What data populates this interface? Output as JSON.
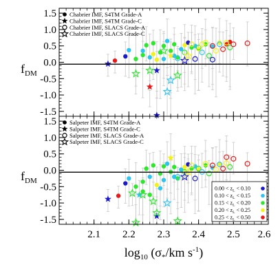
{
  "chart_data": [
    {
      "type": "scatter",
      "panel": "top",
      "ylabel": "f",
      "ylabel_sub": "DM",
      "ylim": [
        -1.65,
        1.65
      ],
      "xlim": [
        2.0,
        2.6
      ],
      "reference_line_y": 0.0,
      "yticks": [
        -1.5,
        -1.0,
        -0.5,
        0.0,
        0.5,
        1.0,
        1.5
      ],
      "ytick_labels": [
        "-1.5",
        "-1.0",
        "-0.5",
        "0.0",
        "0.5",
        "1.0",
        "1.5"
      ],
      "legend_placement": "top-left",
      "legend": [
        {
          "marker": "filled-circle",
          "label": "Chabrier IMF, S4TM Grade-A"
        },
        {
          "marker": "filled-star",
          "label": "Chabrier IMF, S4TM Grade-C"
        },
        {
          "marker": "open-circle",
          "label": "Chabrier IMF, SLACS Grade-A"
        },
        {
          "marker": "open-star",
          "label": "Chabrier IMF, SLACS Grade-C"
        }
      ],
      "series": [
        {
          "marker": "filled-circle",
          "points": [
            {
              "x": 2.16,
              "y": 0.05,
              "z": 4
            },
            {
              "x": 2.19,
              "y": 0.18,
              "z": 0
            },
            {
              "x": 2.2,
              "y": 0.37,
              "z": 1
            },
            {
              "x": 2.22,
              "y": 0.1,
              "z": 2
            },
            {
              "x": 2.24,
              "y": 0.22,
              "z": 2
            },
            {
              "x": 2.25,
              "y": 0.52,
              "z": 2
            },
            {
              "x": 2.26,
              "y": 0.15,
              "z": 1
            },
            {
              "x": 2.27,
              "y": 0.58,
              "z": 2
            },
            {
              "x": 2.28,
              "y": 0.08,
              "z": 3
            },
            {
              "x": 2.29,
              "y": 0.3,
              "z": 2
            },
            {
              "x": 2.3,
              "y": 0.5,
              "z": 2
            },
            {
              "x": 2.3,
              "y": 0.1,
              "z": 1
            },
            {
              "x": 2.31,
              "y": 0.65,
              "z": 1
            },
            {
              "x": 2.32,
              "y": 0.35,
              "z": 2
            },
            {
              "x": 2.33,
              "y": 0.55,
              "z": 2
            },
            {
              "x": 2.33,
              "y": 0.2,
              "z": 1
            },
            {
              "x": 2.34,
              "y": 0.15,
              "z": 2
            },
            {
              "x": 2.35,
              "y": 0.4,
              "z": 1
            },
            {
              "x": 2.36,
              "y": 0.52,
              "z": 3
            },
            {
              "x": 2.37,
              "y": 0.6,
              "z": 0
            },
            {
              "x": 2.38,
              "y": 0.45,
              "z": 2
            },
            {
              "x": 2.39,
              "y": 0.5,
              "z": 1
            },
            {
              "x": 2.4,
              "y": 0.4,
              "z": 3
            },
            {
              "x": 2.42,
              "y": 0.55,
              "z": 2
            },
            {
              "x": 2.44,
              "y": 0.48,
              "z": 1
            },
            {
              "x": 2.46,
              "y": 0.6,
              "z": 3
            },
            {
              "x": 2.48,
              "y": 0.55,
              "z": 4
            },
            {
              "x": 2.49,
              "y": 0.62,
              "z": 4
            },
            {
              "x": 2.24,
              "y": 0.35,
              "z": 1
            },
            {
              "x": 2.27,
              "y": 0.25,
              "z": 3
            }
          ]
        },
        {
          "marker": "filled-star",
          "points": [
            {
              "x": 2.14,
              "y": -0.05,
              "z": 0
            },
            {
              "x": 2.26,
              "y": -0.75,
              "z": 4
            },
            {
              "x": 2.28,
              "y": -0.25,
              "z": 0
            },
            {
              "x": 2.28,
              "y": -1.62,
              "z": 0
            },
            {
              "x": 2.32,
              "y": 0.2,
              "z": 3
            }
          ]
        },
        {
          "marker": "open-circle",
          "points": [
            {
              "x": 2.34,
              "y": 0.12,
              "z": 1
            },
            {
              "x": 2.36,
              "y": 0.3,
              "z": 2
            },
            {
              "x": 2.38,
              "y": 0.55,
              "z": 3
            },
            {
              "x": 2.39,
              "y": 0.1,
              "z": 0
            },
            {
              "x": 2.4,
              "y": 0.45,
              "z": 2
            },
            {
              "x": 2.41,
              "y": 0.3,
              "z": 1
            },
            {
              "x": 2.42,
              "y": 0.6,
              "z": 3
            },
            {
              "x": 2.43,
              "y": 0.2,
              "z": 2
            },
            {
              "x": 2.44,
              "y": 0.5,
              "z": 4
            },
            {
              "x": 2.45,
              "y": 0.35,
              "z": 3
            },
            {
              "x": 2.46,
              "y": 0.55,
              "z": 1
            },
            {
              "x": 2.47,
              "y": 0.4,
              "z": 4
            },
            {
              "x": 2.48,
              "y": 0.6,
              "z": 3
            },
            {
              "x": 2.49,
              "y": 0.45,
              "z": 2
            },
            {
              "x": 2.5,
              "y": 0.55,
              "z": 4
            },
            {
              "x": 2.54,
              "y": 0.58,
              "z": 4
            },
            {
              "x": 2.44,
              "y": 0.08,
              "z": 0
            },
            {
              "x": 2.41,
              "y": 0.55,
              "z": 3
            }
          ]
        },
        {
          "marker": "open-star",
          "points": [
            {
              "x": 2.22,
              "y": -0.35,
              "z": 2
            },
            {
              "x": 2.26,
              "y": -0.25,
              "z": 2
            },
            {
              "x": 2.3,
              "y": 0.35,
              "z": 2
            },
            {
              "x": 2.31,
              "y": -0.9,
              "z": 1
            },
            {
              "x": 2.32,
              "y": -0.55,
              "z": 1
            },
            {
              "x": 2.34,
              "y": -0.4,
              "z": 2
            },
            {
              "x": 2.36,
              "y": 0.05,
              "z": 0
            },
            {
              "x": 2.37,
              "y": 0.2,
              "z": 3
            }
          ]
        }
      ]
    },
    {
      "type": "scatter",
      "panel": "bottom",
      "ylabel": "f",
      "ylabel_sub": "DM",
      "xlabel_pre": "log",
      "xlabel_sub": "10",
      "xlabel_post": " (σ",
      "xlabel_sub2": "*",
      "xlabel_end": "/km s",
      "xlabel_sup": "-1",
      "xlabel_close": ")",
      "ylim": [
        -1.65,
        1.65
      ],
      "xlim": [
        2.0,
        2.6
      ],
      "reference_line_y": 0.0,
      "xticks": [
        2.1,
        2.2,
        2.3,
        2.4,
        2.5,
        2.6
      ],
      "xtick_labels": [
        "2.1",
        "2.2",
        "2.3",
        "2.4",
        "2.5",
        "2.6"
      ],
      "yticks": [
        -1.5,
        -1.0,
        -0.5,
        0.0,
        0.5,
        1.0,
        1.5
      ],
      "ytick_labels": [
        "-1.5",
        "-1.0",
        "-0.5",
        "0.0",
        "0.5",
        "1.0",
        "1.5"
      ],
      "legend_placement": "top-left",
      "legend": [
        {
          "marker": "filled-circle",
          "label": "Salpeter IMF, S4TM Grade-A"
        },
        {
          "marker": "filled-star",
          "label": "Salpeter IMF, S4TM Grade-C"
        },
        {
          "marker": "open-circle",
          "label": "Salpeter IMF, SLACS Grade-A"
        },
        {
          "marker": "open-star",
          "label": "Salpeter IMF, SLACS Grade-C"
        }
      ],
      "series": [
        {
          "marker": "filled-circle",
          "points": [
            {
              "x": 2.17,
              "y": -0.78,
              "z": 4
            },
            {
              "x": 2.19,
              "y": -0.4,
              "z": 0
            },
            {
              "x": 2.2,
              "y": -0.25,
              "z": 1
            },
            {
              "x": 2.22,
              "y": -0.5,
              "z": 2
            },
            {
              "x": 2.24,
              "y": -0.35,
              "z": 2
            },
            {
              "x": 2.25,
              "y": 0.05,
              "z": 2
            },
            {
              "x": 2.26,
              "y": -0.2,
              "z": 1
            },
            {
              "x": 2.27,
              "y": 0.15,
              "z": 2
            },
            {
              "x": 2.28,
              "y": -0.45,
              "z": 3
            },
            {
              "x": 2.29,
              "y": -0.1,
              "z": 2
            },
            {
              "x": 2.3,
              "y": 0.12,
              "z": 2
            },
            {
              "x": 2.3,
              "y": -0.3,
              "z": 1
            },
            {
              "x": 2.31,
              "y": 0.2,
              "z": 1
            },
            {
              "x": 2.32,
              "y": -0.05,
              "z": 2
            },
            {
              "x": 2.33,
              "y": 0.1,
              "z": 2
            },
            {
              "x": 2.33,
              "y": -0.2,
              "z": 1
            },
            {
              "x": 2.34,
              "y": -0.25,
              "z": 2
            },
            {
              "x": 2.35,
              "y": 0.02,
              "z": 1
            },
            {
              "x": 2.36,
              "y": 0.1,
              "z": 3
            },
            {
              "x": 2.37,
              "y": 0.18,
              "z": 0
            },
            {
              "x": 2.38,
              "y": 0.05,
              "z": 2
            },
            {
              "x": 2.39,
              "y": 0.12,
              "z": 1
            },
            {
              "x": 2.4,
              "y": 0.02,
              "z": 3
            },
            {
              "x": 2.42,
              "y": 0.15,
              "z": 2
            },
            {
              "x": 2.44,
              "y": 0.08,
              "z": 1
            },
            {
              "x": 2.46,
              "y": 0.2,
              "z": 3
            },
            {
              "x": 2.24,
              "y": -0.65,
              "z": 2
            },
            {
              "x": 2.26,
              "y": -0.75,
              "z": 2
            },
            {
              "x": 2.29,
              "y": -0.55,
              "z": 1
            }
          ]
        },
        {
          "marker": "filled-star",
          "points": [
            {
              "x": 2.14,
              "y": -0.88,
              "z": 0
            },
            {
              "x": 2.23,
              "y": -0.75,
              "z": 1
            },
            {
              "x": 2.28,
              "y": -1.4,
              "z": 0
            },
            {
              "x": 2.32,
              "y": 0.38,
              "z": 3
            }
          ]
        },
        {
          "marker": "open-circle",
          "points": [
            {
              "x": 2.34,
              "y": -0.2,
              "z": 1
            },
            {
              "x": 2.36,
              "y": -0.05,
              "z": 2
            },
            {
              "x": 2.38,
              "y": 0.15,
              "z": 3
            },
            {
              "x": 2.39,
              "y": -0.25,
              "z": 0
            },
            {
              "x": 2.4,
              "y": 0.05,
              "z": 2
            },
            {
              "x": 2.41,
              "y": -0.05,
              "z": 1
            },
            {
              "x": 2.42,
              "y": 0.2,
              "z": 3
            },
            {
              "x": 2.43,
              "y": -0.1,
              "z": 2
            },
            {
              "x": 2.44,
              "y": 0.15,
              "z": 4
            },
            {
              "x": 2.45,
              "y": 0.02,
              "z": 3
            },
            {
              "x": 2.46,
              "y": 0.18,
              "z": 1
            },
            {
              "x": 2.47,
              "y": 0.05,
              "z": 4
            },
            {
              "x": 2.48,
              "y": 0.22,
              "z": 3
            },
            {
              "x": 2.49,
              "y": 0.1,
              "z": 2
            },
            {
              "x": 2.5,
              "y": 0.35,
              "z": 4
            },
            {
              "x": 2.48,
              "y": 0.4,
              "z": 4
            },
            {
              "x": 2.54,
              "y": 0.2,
              "z": 4
            }
          ]
        },
        {
          "marker": "open-star",
          "points": [
            {
              "x": 2.21,
              "y": -0.7,
              "z": 2
            },
            {
              "x": 2.24,
              "y": -0.75,
              "z": 2
            },
            {
              "x": 2.27,
              "y": -0.95,
              "z": 2
            },
            {
              "x": 2.28,
              "y": -1.3,
              "z": 2
            },
            {
              "x": 2.31,
              "y": -1.0,
              "z": 1
            },
            {
              "x": 2.34,
              "y": -1.55,
              "z": 2
            },
            {
              "x": 2.36,
              "y": -0.2,
              "z": 0
            },
            {
              "x": 2.37,
              "y": -0.05,
              "z": 3
            },
            {
              "x": 2.22,
              "y": -1.6,
              "z": 2
            }
          ]
        }
      ],
      "redshift_key": [
        {
          "label": "0.00 < z",
          "sub": "L",
          "range": " < 0.10",
          "color": "#1a1acc"
        },
        {
          "label": "0.10 < z",
          "sub": "L",
          "range": " < 0.15",
          "color": "#2ec4f2"
        },
        {
          "label": "0.15 < z",
          "sub": "L",
          "range": " < 0.20",
          "color": "#2ee62e"
        },
        {
          "label": "0.20 < z",
          "sub": "L",
          "range": " < 0.25",
          "color": "#f2f21a"
        },
        {
          "label": "0.25 < z",
          "sub": "L",
          "range": " < 0.50",
          "color": "#e61a1a"
        }
      ]
    }
  ]
}
